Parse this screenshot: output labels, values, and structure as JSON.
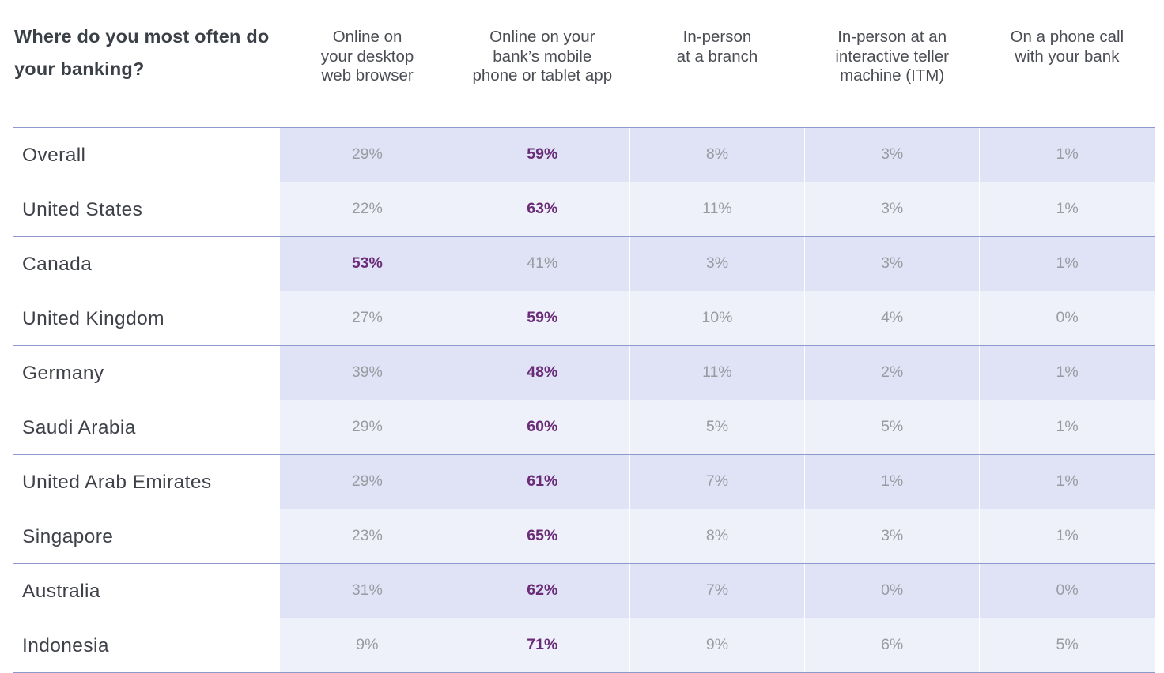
{
  "chart_data": {
    "type": "table",
    "title": "Where do you most often do your banking?",
    "columns": [
      "Online on\nyour desktop\nweb browser",
      "Online on your\nbank’s mobile\nphone or tablet app",
      "In-person\nat a branch",
      "In-person at an\ninteractive teller\nmachine (ITM)",
      "On a phone call\nwith your bank"
    ],
    "rows": [
      {
        "label": "Overall",
        "values": [
          "29%",
          "59%",
          "8%",
          "3%",
          "1%"
        ],
        "highlight": 1
      },
      {
        "label": "United States",
        "values": [
          "22%",
          "63%",
          "11%",
          "3%",
          "1%"
        ],
        "highlight": 1
      },
      {
        "label": "Canada",
        "values": [
          "53%",
          "41%",
          "3%",
          "3%",
          "1%"
        ],
        "highlight": 0
      },
      {
        "label": "United Kingdom",
        "values": [
          "27%",
          "59%",
          "10%",
          "4%",
          "0%"
        ],
        "highlight": 1
      },
      {
        "label": "Germany",
        "values": [
          "39%",
          "48%",
          "11%",
          "2%",
          "1%"
        ],
        "highlight": 1
      },
      {
        "label": "Saudi Arabia",
        "values": [
          "29%",
          "60%",
          "5%",
          "5%",
          "1%"
        ],
        "highlight": 1
      },
      {
        "label": "United Arab Emirates",
        "values": [
          "29%",
          "61%",
          "7%",
          "1%",
          "1%"
        ],
        "highlight": 1
      },
      {
        "label": "Singapore",
        "values": [
          "23%",
          "65%",
          "8%",
          "3%",
          "1%"
        ],
        "highlight": 1
      },
      {
        "label": "Australia",
        "values": [
          "31%",
          "62%",
          "7%",
          "0%",
          "0%"
        ],
        "highlight": 1
      },
      {
        "label": "Indonesia",
        "values": [
          "9%",
          "71%",
          "9%",
          "6%",
          "5%"
        ],
        "highlight": 1
      }
    ],
    "colors": {
      "highlight_text": "#6a2c78",
      "normal_text": "#9a9ba1",
      "band_dark": "#dfe3f5",
      "band_light": "#eff1fa",
      "rule": "#8d9acb"
    }
  }
}
